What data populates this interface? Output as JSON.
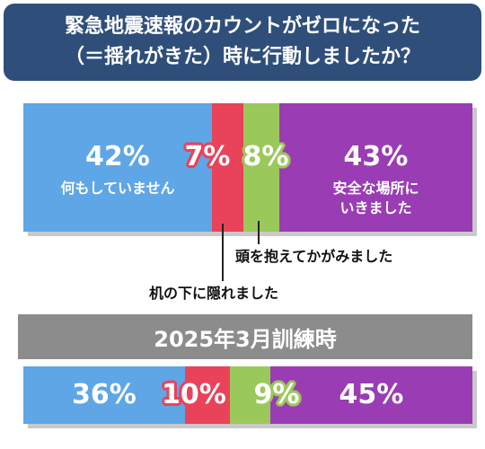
{
  "title": {
    "line1": "緊急地震速報のカウントがゼロになった",
    "line2": "（＝揺れがきた）時に行動しましたか？"
  },
  "colors": {
    "nothing": "#5ea6e6",
    "under_desk": "#e9435a",
    "protect_head": "#9bc85b",
    "safe_place": "#9a3cb4",
    "title_bg": "#2f4f7a",
    "sub_title_bg": "#8c8c8c"
  },
  "chart_data": [
    {
      "type": "bar",
      "stacked": true,
      "orientation": "horizontal",
      "categories": [
        "何もしていません",
        "机の下に隠れました",
        "頭を抱えてかがみました",
        "安全な場所にいきました"
      ],
      "values": [
        42,
        7,
        8,
        43
      ],
      "labels": [
        "42%",
        "7%",
        "8%",
        "43%"
      ],
      "segment_labels": [
        "何もしていません",
        "",
        "",
        "安全な場所にいきました"
      ],
      "annotations": [
        "頭を抱えてかがみました",
        "机の下に隠れました"
      ]
    },
    {
      "type": "bar",
      "stacked": true,
      "orientation": "horizontal",
      "title": "2025年3月訓練時",
      "categories": [
        "何もしていません",
        "机の下に隠れました",
        "頭を抱えてかがみました",
        "安全な場所にいきました"
      ],
      "values": [
        36,
        10,
        9,
        45
      ],
      "labels": [
        "36%",
        "10%",
        "9%",
        "45%"
      ]
    }
  ]
}
